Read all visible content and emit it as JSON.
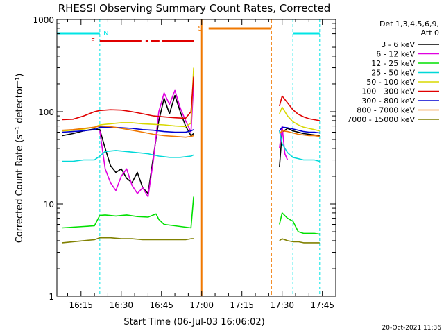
{
  "colors": {
    "background": "#ffffff",
    "axes": "#000000",
    "night_marker": "#00e5e5",
    "flare_marker": "#e00000",
    "saa_marker": "#f07800"
  },
  "chart_data": {
    "type": "line",
    "title": "RHESSI Observing Summary Count Rates, Corrected",
    "xlabel": "Start Time (06-Jul-03 16:06:02)",
    "ylabel": "Corrected Count Rate (s⁻¹ detector⁻¹)",
    "y_scale": "log",
    "ylim": [
      1,
      1000
    ],
    "xlim": [
      "16:06",
      "17:50"
    ],
    "x_ticks": [
      "16:15",
      "16:30",
      "16:45",
      "17:00",
      "17:15",
      "17:30",
      "17:45"
    ],
    "y_ticks": [
      "1",
      "10",
      "100",
      "1000"
    ],
    "legend_header": [
      "Det 1,3,4,5,6,9,",
      "Att 0"
    ],
    "legend_position": "right",
    "timestamp": "20-Oct-2021 11:36",
    "markers": [
      {
        "label": "N",
        "kind": "night",
        "start": "16:06",
        "end": "16:22"
      },
      {
        "label": "",
        "kind": "night",
        "start": "17:34",
        "end": "17:44"
      },
      {
        "label": "F",
        "kind": "flare",
        "start": "16:22",
        "end": "16:57"
      },
      {
        "label": "S",
        "kind": "saa",
        "start": "17:00",
        "end": "17:26"
      }
    ],
    "gaps": [
      [
        "16:57",
        "17:29"
      ]
    ],
    "series": [
      {
        "name": "3 - 6 keV",
        "color": "#000000",
        "x": [
          "16:08",
          "16:12",
          "16:16",
          "16:20",
          "16:22",
          "16:24",
          "16:26",
          "16:28",
          "16:30",
          "16:32",
          "16:34",
          "16:36",
          "16:38",
          "16:40",
          "16:42",
          "16:44",
          "16:46",
          "16:48",
          "16:50",
          "16:52",
          "16:54",
          "16:56",
          "16:57",
          "17:29",
          "17:30",
          "17:32",
          "17:34",
          "17:36",
          "17:38",
          "17:40",
          "17:42",
          "17:44"
        ],
        "y": [
          55,
          58,
          62,
          65,
          64,
          40,
          26,
          22,
          24,
          19,
          17,
          22,
          15,
          13,
          33,
          80,
          140,
          95,
          150,
          100,
          70,
          55,
          58,
          25,
          60,
          66,
          62,
          60,
          58,
          57,
          56,
          55
        ]
      },
      {
        "name": "6 - 12 keV",
        "color": "#e000e0",
        "x": [
          "16:22",
          "16:24",
          "16:26",
          "16:28",
          "16:30",
          "16:32",
          "16:34",
          "16:36",
          "16:38",
          "16:40",
          "16:42",
          "16:44",
          "16:46",
          "16:48",
          "16:50",
          "16:52",
          "16:54",
          "16:56",
          "16:57",
          "17:29",
          "17:30",
          "17:31",
          "17:32"
        ],
        "y": [
          62,
          24,
          17,
          14,
          20,
          24,
          16,
          13,
          15,
          12,
          30,
          100,
          160,
          120,
          170,
          110,
          80,
          60,
          200,
          40,
          70,
          35,
          30
        ]
      },
      {
        "name": "12 - 25 keV",
        "color": "#00e000",
        "x": [
          "16:08",
          "16:12",
          "16:16",
          "16:20",
          "16:22",
          "16:24",
          "16:28",
          "16:32",
          "16:36",
          "16:40",
          "16:43",
          "16:44",
          "16:46",
          "16:50",
          "16:54",
          "16:56",
          "16:57",
          "17:29",
          "17:30",
          "17:32",
          "17:34",
          "17:36",
          "17:38",
          "17:40",
          "17:42",
          "17:44"
        ],
        "y": [
          5.5,
          5.6,
          5.7,
          5.8,
          7.5,
          7.6,
          7.4,
          7.6,
          7.3,
          7.2,
          7.8,
          6.8,
          6.0,
          5.8,
          5.6,
          5.5,
          12,
          6,
          8,
          7,
          6.5,
          5,
          4.8,
          4.8,
          4.8,
          4.7
        ]
      },
      {
        "name": "25 - 50 keV",
        "color": "#00d8d8",
        "x": [
          "16:08",
          "16:12",
          "16:16",
          "16:20",
          "16:22",
          "16:24",
          "16:28",
          "16:32",
          "16:36",
          "16:40",
          "16:44",
          "16:48",
          "16:52",
          "16:56",
          "16:57",
          "17:29",
          "17:30",
          "17:32",
          "17:34",
          "17:36",
          "17:38",
          "17:40",
          "17:42",
          "17:44"
        ],
        "y": [
          29,
          29,
          30,
          30,
          33,
          37,
          38,
          37,
          36,
          35,
          33,
          32,
          32,
          33,
          34,
          62,
          45,
          36,
          32,
          31,
          30,
          30,
          30,
          29
        ]
      },
      {
        "name": "50 - 100 keV",
        "color": "#d8d800",
        "x": [
          "16:08",
          "16:12",
          "16:16",
          "16:20",
          "16:22",
          "16:26",
          "16:30",
          "16:34",
          "16:38",
          "16:42",
          "16:46",
          "16:50",
          "16:54",
          "16:56",
          "16:57",
          "17:29",
          "17:30",
          "17:32",
          "17:34",
          "17:36",
          "17:38",
          "17:40",
          "17:42",
          "17:44"
        ],
        "y": [
          62,
          63,
          65,
          68,
          72,
          74,
          76,
          76,
          74,
          73,
          72,
          70,
          69,
          75,
          300,
          95,
          112,
          90,
          78,
          72,
          68,
          66,
          64,
          62
        ]
      },
      {
        "name": "100 - 300 keV",
        "color": "#e00000",
        "x": [
          "16:08",
          "16:12",
          "16:16",
          "16:20",
          "16:22",
          "16:26",
          "16:30",
          "16:34",
          "16:38",
          "16:42",
          "16:46",
          "16:50",
          "16:54",
          "16:56",
          "16:57",
          "17:29",
          "17:30",
          "17:32",
          "17:34",
          "17:36",
          "17:38",
          "17:40",
          "17:42",
          "17:44"
        ],
        "y": [
          82,
          83,
          90,
          100,
          103,
          105,
          104,
          100,
          95,
          90,
          88,
          86,
          85,
          100,
          240,
          115,
          148,
          125,
          105,
          94,
          88,
          84,
          82,
          80
        ]
      },
      {
        "name": "300 - 800 keV",
        "color": "#0000d0",
        "x": [
          "16:08",
          "16:12",
          "16:16",
          "16:20",
          "16:22",
          "16:26",
          "16:30",
          "16:34",
          "16:38",
          "16:42",
          "16:46",
          "16:50",
          "16:54",
          "16:56",
          "16:57",
          "17:29",
          "17:30",
          "17:32",
          "17:34",
          "17:36",
          "17:38",
          "17:40",
          "17:42",
          "17:44"
        ],
        "y": [
          60,
          61,
          62,
          64,
          68,
          68,
          67,
          66,
          64,
          63,
          61,
          60,
          60,
          62,
          64,
          62,
          68,
          67,
          65,
          63,
          61,
          60,
          60,
          59
        ]
      },
      {
        "name": "800 - 7000 keV",
        "color": "#f07800",
        "x": [
          "16:08",
          "16:12",
          "16:16",
          "16:20",
          "16:22",
          "16:26",
          "16:30",
          "16:34",
          "16:38",
          "16:42",
          "16:46",
          "16:50",
          "16:54",
          "16:56",
          "16:57",
          "17:29",
          "17:30",
          "17:32",
          "17:34",
          "17:36",
          "17:38",
          "17:40",
          "17:42",
          "17:44"
        ],
        "y": [
          63,
          64,
          66,
          68,
          70,
          69,
          66,
          63,
          60,
          57,
          55,
          54,
          53,
          54,
          55,
          58,
          62,
          61,
          59,
          57,
          56,
          55,
          55,
          54
        ]
      },
      {
        "name": "7000 - 15000 keV",
        "color": "#808000",
        "x": [
          "16:08",
          "16:12",
          "16:16",
          "16:20",
          "16:22",
          "16:26",
          "16:30",
          "16:34",
          "16:38",
          "16:42",
          "16:46",
          "16:50",
          "16:54",
          "16:56",
          "16:57",
          "17:29",
          "17:30",
          "17:32",
          "17:34",
          "17:36",
          "17:38",
          "17:40",
          "17:42",
          "17:44"
        ],
        "y": [
          3.8,
          3.9,
          4.0,
          4.1,
          4.3,
          4.3,
          4.2,
          4.2,
          4.1,
          4.1,
          4.1,
          4.1,
          4.1,
          4.2,
          4.2,
          4.0,
          4.2,
          4.0,
          3.9,
          3.9,
          3.8,
          3.8,
          3.8,
          3.8
        ]
      }
    ]
  }
}
